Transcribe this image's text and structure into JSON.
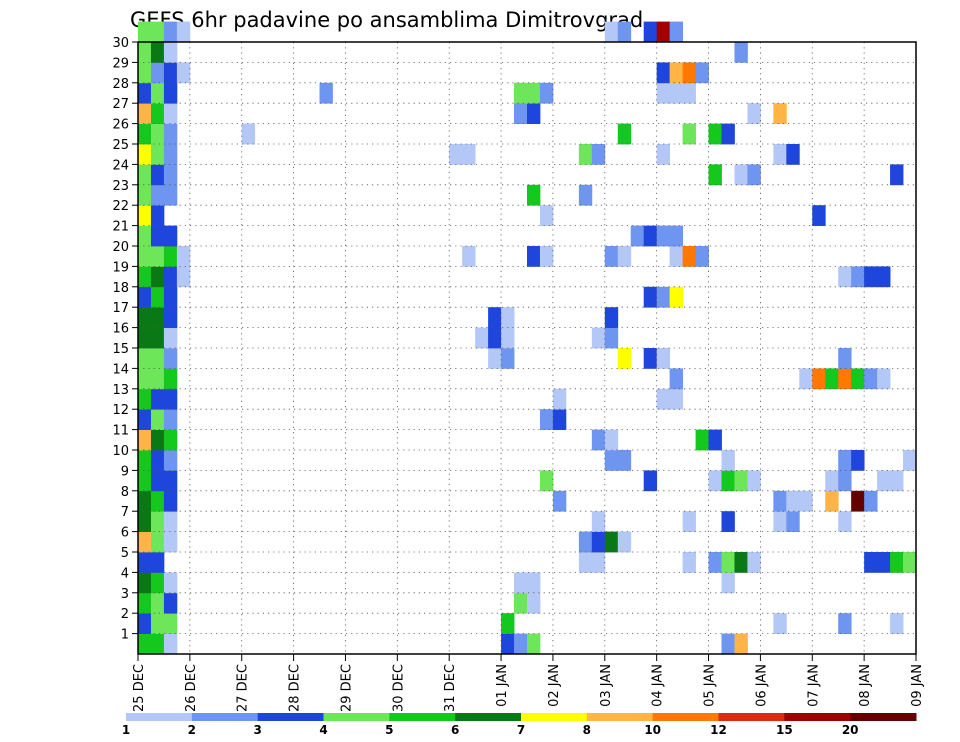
{
  "chart_data": {
    "type": "heatmap",
    "title": "GEFS 6hr padavine po ansamblima Dimitrovgrad",
    "xlabel": "",
    "ylabel": "",
    "x_ticks": [
      "25 DEC",
      "26 DEC",
      "27 DEC",
      "28 DEC",
      "29 DEC",
      "30 DEC",
      "31 DEC",
      "01 JAN",
      "02 JAN",
      "03 JAN",
      "04 JAN",
      "05 JAN",
      "06 JAN",
      "07 JAN",
      "08 JAN",
      "09 JAN"
    ],
    "y_ticks": [
      "1",
      "2",
      "3",
      "4",
      "5",
      "6",
      "7",
      "8",
      "9",
      "10",
      "11",
      "12",
      "13",
      "14",
      "15",
      "16",
      "17",
      "18",
      "19",
      "20",
      "21",
      "22",
      "23",
      "24",
      "25",
      "26",
      "27",
      "28",
      "29",
      "30"
    ],
    "xlim": [
      0,
      60
    ],
    "ylim": [
      0,
      30
    ],
    "x_unit": "6-hour steps from 25 DEC 00Z",
    "grid": true,
    "colorbar": {
      "labels": [
        "1",
        "2",
        "3",
        "4",
        "5",
        "6",
        "7",
        "8",
        "10",
        "12",
        "15",
        "20"
      ],
      "colors": [
        "#b4c8f8",
        "#6e96f0",
        "#1e46dc",
        "#6ee65a",
        "#14c81e",
        "#0a7814",
        "#ffff00",
        "#ffb446",
        "#ff7800",
        "#e12814",
        "#a00000",
        "#640000"
      ]
    },
    "cells": [
      [
        0,
        0,
        "#14c81e"
      ],
      [
        1,
        0,
        "#14c81e"
      ],
      [
        2,
        0,
        "#b4c8f8"
      ],
      [
        28,
        0,
        "#1e46dc"
      ],
      [
        29,
        0,
        "#6e96f0"
      ],
      [
        30,
        0,
        "#6ee65a"
      ],
      [
        45,
        0,
        "#6e96f0"
      ],
      [
        46,
        0,
        "#ffb446"
      ],
      [
        0,
        1,
        "#1e46dc"
      ],
      [
        1,
        1,
        "#6ee65a"
      ],
      [
        2,
        1,
        "#6ee65a"
      ],
      [
        28,
        1,
        "#14c81e"
      ],
      [
        49,
        1,
        "#b4c8f8"
      ],
      [
        54,
        1,
        "#6e96f0"
      ],
      [
        58,
        1,
        "#b4c8f8"
      ],
      [
        0,
        2,
        "#14c81e"
      ],
      [
        1,
        2,
        "#6ee65a"
      ],
      [
        2,
        2,
        "#1e46dc"
      ],
      [
        29,
        2,
        "#6ee65a"
      ],
      [
        30,
        2,
        "#b4c8f8"
      ],
      [
        0,
        3,
        "#0a7814"
      ],
      [
        1,
        3,
        "#14c81e"
      ],
      [
        2,
        3,
        "#b4c8f8"
      ],
      [
        29,
        3,
        "#b4c8f8"
      ],
      [
        30,
        3,
        "#b4c8f8"
      ],
      [
        45,
        3,
        "#b4c8f8"
      ],
      [
        0,
        4,
        "#1e46dc"
      ],
      [
        1,
        4,
        "#1e46dc"
      ],
      [
        34,
        4,
        "#b4c8f8"
      ],
      [
        35,
        4,
        "#b4c8f8"
      ],
      [
        42,
        4,
        "#b4c8f8"
      ],
      [
        44,
        4,
        "#6e96f0"
      ],
      [
        45,
        4,
        "#6ee65a"
      ],
      [
        46,
        4,
        "#0a7814"
      ],
      [
        47,
        4,
        "#b4c8f8"
      ],
      [
        56,
        4,
        "#1e46dc"
      ],
      [
        57,
        4,
        "#1e46dc"
      ],
      [
        58,
        4,
        "#14c81e"
      ],
      [
        59,
        4,
        "#6ee65a"
      ],
      [
        0,
        5,
        "#ffb446"
      ],
      [
        1,
        5,
        "#6ee65a"
      ],
      [
        2,
        5,
        "#b4c8f8"
      ],
      [
        34,
        5,
        "#6e96f0"
      ],
      [
        35,
        5,
        "#1e46dc"
      ],
      [
        36,
        5,
        "#0a7814"
      ],
      [
        37,
        5,
        "#b4c8f8"
      ],
      [
        0,
        6,
        "#0a7814"
      ],
      [
        1,
        6,
        "#6ee65a"
      ],
      [
        2,
        6,
        "#b4c8f8"
      ],
      [
        35,
        6,
        "#b4c8f8"
      ],
      [
        42,
        6,
        "#b4c8f8"
      ],
      [
        45,
        6,
        "#1e46dc"
      ],
      [
        49,
        6,
        "#b4c8f8"
      ],
      [
        50,
        6,
        "#6e96f0"
      ],
      [
        54,
        6,
        "#b4c8f8"
      ],
      [
        0,
        7,
        "#0a7814"
      ],
      [
        1,
        7,
        "#14c81e"
      ],
      [
        2,
        7,
        "#1e46dc"
      ],
      [
        32,
        7,
        "#6e96f0"
      ],
      [
        49,
        7,
        "#6e96f0"
      ],
      [
        50,
        7,
        "#b4c8f8"
      ],
      [
        51,
        7,
        "#b4c8f8"
      ],
      [
        53,
        7,
        "#ffb446"
      ],
      [
        55,
        7,
        "#640000"
      ],
      [
        56,
        7,
        "#6e96f0"
      ],
      [
        0,
        8,
        "#14c81e"
      ],
      [
        1,
        8,
        "#1e46dc"
      ],
      [
        2,
        8,
        "#1e46dc"
      ],
      [
        31,
        8,
        "#6ee65a"
      ],
      [
        39,
        8,
        "#1e46dc"
      ],
      [
        44,
        8,
        "#b4c8f8"
      ],
      [
        45,
        8,
        "#14c81e"
      ],
      [
        46,
        8,
        "#6ee65a"
      ],
      [
        47,
        8,
        "#b4c8f8"
      ],
      [
        53,
        8,
        "#b4c8f8"
      ],
      [
        54,
        8,
        "#6e96f0"
      ],
      [
        57,
        8,
        "#b4c8f8"
      ],
      [
        58,
        8,
        "#b4c8f8"
      ],
      [
        0,
        9,
        "#14c81e"
      ],
      [
        1,
        9,
        "#1e46dc"
      ],
      [
        2,
        9,
        "#6e96f0"
      ],
      [
        36,
        9,
        "#6e96f0"
      ],
      [
        37,
        9,
        "#6e96f0"
      ],
      [
        45,
        9,
        "#b4c8f8"
      ],
      [
        54,
        9,
        "#6e96f0"
      ],
      [
        55,
        9,
        "#1e46dc"
      ],
      [
        59,
        9,
        "#b4c8f8"
      ],
      [
        0,
        10,
        "#ffb446"
      ],
      [
        1,
        10,
        "#0a7814"
      ],
      [
        2,
        10,
        "#14c81e"
      ],
      [
        35,
        10,
        "#6e96f0"
      ],
      [
        36,
        10,
        "#b4c8f8"
      ],
      [
        43,
        10,
        "#14c81e"
      ],
      [
        44,
        10,
        "#1e46dc"
      ],
      [
        0,
        11,
        "#1e46dc"
      ],
      [
        1,
        11,
        "#6ee65a"
      ],
      [
        2,
        11,
        "#6e96f0"
      ],
      [
        31,
        11,
        "#6e96f0"
      ],
      [
        32,
        11,
        "#1e46dc"
      ],
      [
        0,
        12,
        "#14c81e"
      ],
      [
        1,
        12,
        "#1e46dc"
      ],
      [
        2,
        12,
        "#1e46dc"
      ],
      [
        32,
        12,
        "#b4c8f8"
      ],
      [
        40,
        12,
        "#b4c8f8"
      ],
      [
        41,
        12,
        "#b4c8f8"
      ],
      [
        0,
        13,
        "#6ee65a"
      ],
      [
        1,
        13,
        "#6ee65a"
      ],
      [
        2,
        13,
        "#14c81e"
      ],
      [
        41,
        13,
        "#6e96f0"
      ],
      [
        51,
        13,
        "#b4c8f8"
      ],
      [
        52,
        13,
        "#ff7800"
      ],
      [
        53,
        13,
        "#14c81e"
      ],
      [
        54,
        13,
        "#ff7800"
      ],
      [
        55,
        13,
        "#14c81e"
      ],
      [
        56,
        13,
        "#6e96f0"
      ],
      [
        57,
        13,
        "#b4c8f8"
      ],
      [
        0,
        14,
        "#6ee65a"
      ],
      [
        1,
        14,
        "#6ee65a"
      ],
      [
        2,
        14,
        "#6e96f0"
      ],
      [
        27,
        14,
        "#b4c8f8"
      ],
      [
        28,
        14,
        "#6e96f0"
      ],
      [
        37,
        14,
        "#ffff00"
      ],
      [
        39,
        14,
        "#1e46dc"
      ],
      [
        40,
        14,
        "#b4c8f8"
      ],
      [
        54,
        14,
        "#6e96f0"
      ],
      [
        0,
        15,
        "#0a7814"
      ],
      [
        1,
        15,
        "#0a7814"
      ],
      [
        2,
        15,
        "#b4c8f8"
      ],
      [
        26,
        15,
        "#b4c8f8"
      ],
      [
        27,
        15,
        "#1e46dc"
      ],
      [
        28,
        15,
        "#b4c8f8"
      ],
      [
        35,
        15,
        "#b4c8f8"
      ],
      [
        36,
        15,
        "#6e96f0"
      ],
      [
        0,
        16,
        "#0a7814"
      ],
      [
        1,
        16,
        "#0a7814"
      ],
      [
        2,
        16,
        "#1e46dc"
      ],
      [
        27,
        16,
        "#1e46dc"
      ],
      [
        28,
        16,
        "#b4c8f8"
      ],
      [
        36,
        16,
        "#1e46dc"
      ],
      [
        0,
        17,
        "#1e46dc"
      ],
      [
        1,
        17,
        "#14c81e"
      ],
      [
        2,
        17,
        "#1e46dc"
      ],
      [
        39,
        17,
        "#1e46dc"
      ],
      [
        40,
        17,
        "#6e96f0"
      ],
      [
        41,
        17,
        "#ffff00"
      ],
      [
        0,
        18,
        "#14c81e"
      ],
      [
        1,
        18,
        "#0a7814"
      ],
      [
        2,
        18,
        "#1e46dc"
      ],
      [
        3,
        18,
        "#b4c8f8"
      ],
      [
        54,
        18,
        "#b4c8f8"
      ],
      [
        55,
        18,
        "#6e96f0"
      ],
      [
        56,
        18,
        "#1e46dc"
      ],
      [
        57,
        18,
        "#1e46dc"
      ],
      [
        0,
        19,
        "#6ee65a"
      ],
      [
        1,
        19,
        "#6ee65a"
      ],
      [
        2,
        19,
        "#14c81e"
      ],
      [
        3,
        19,
        "#b4c8f8"
      ],
      [
        25,
        19,
        "#b4c8f8"
      ],
      [
        30,
        19,
        "#1e46dc"
      ],
      [
        31,
        19,
        "#b4c8f8"
      ],
      [
        36,
        19,
        "#6e96f0"
      ],
      [
        37,
        19,
        "#b4c8f8"
      ],
      [
        41,
        19,
        "#b4c8f8"
      ],
      [
        42,
        19,
        "#ff7800"
      ],
      [
        43,
        19,
        "#6e96f0"
      ],
      [
        0,
        20,
        "#6ee65a"
      ],
      [
        1,
        20,
        "#1e46dc"
      ],
      [
        2,
        20,
        "#1e46dc"
      ],
      [
        38,
        20,
        "#6e96f0"
      ],
      [
        39,
        20,
        "#1e46dc"
      ],
      [
        40,
        20,
        "#6e96f0"
      ],
      [
        41,
        20,
        "#6e96f0"
      ],
      [
        0,
        21,
        "#ffff00"
      ],
      [
        1,
        21,
        "#1e46dc"
      ],
      [
        31,
        21,
        "#b4c8f8"
      ],
      [
        52,
        21,
        "#1e46dc"
      ],
      [
        0,
        22,
        "#6ee65a"
      ],
      [
        1,
        22,
        "#6e96f0"
      ],
      [
        2,
        22,
        "#6e96f0"
      ],
      [
        30,
        22,
        "#14c81e"
      ],
      [
        34,
        22,
        "#6e96f0"
      ],
      [
        0,
        23,
        "#6ee65a"
      ],
      [
        1,
        23,
        "#1e46dc"
      ],
      [
        2,
        23,
        "#6e96f0"
      ],
      [
        44,
        23,
        "#14c81e"
      ],
      [
        46,
        23,
        "#b4c8f8"
      ],
      [
        47,
        23,
        "#6e96f0"
      ],
      [
        58,
        23,
        "#1e46dc"
      ],
      [
        0,
        24,
        "#ffff00"
      ],
      [
        1,
        24,
        "#6ee65a"
      ],
      [
        2,
        24,
        "#6e96f0"
      ],
      [
        24,
        24,
        "#b4c8f8"
      ],
      [
        25,
        24,
        "#b4c8f8"
      ],
      [
        34,
        24,
        "#6ee65a"
      ],
      [
        35,
        24,
        "#6e96f0"
      ],
      [
        40,
        24,
        "#b4c8f8"
      ],
      [
        49,
        24,
        "#b4c8f8"
      ],
      [
        50,
        24,
        "#1e46dc"
      ],
      [
        0,
        25,
        "#14c81e"
      ],
      [
        1,
        25,
        "#6ee65a"
      ],
      [
        2,
        25,
        "#6e96f0"
      ],
      [
        8,
        25,
        "#b4c8f8"
      ],
      [
        37,
        25,
        "#14c81e"
      ],
      [
        42,
        25,
        "#6ee65a"
      ],
      [
        44,
        25,
        "#14c81e"
      ],
      [
        45,
        25,
        "#1e46dc"
      ],
      [
        0,
        26,
        "#ffb446"
      ],
      [
        1,
        26,
        "#14c81e"
      ],
      [
        2,
        26,
        "#b4c8f8"
      ],
      [
        29,
        26,
        "#6e96f0"
      ],
      [
        30,
        26,
        "#1e46dc"
      ],
      [
        47,
        26,
        "#b4c8f8"
      ],
      [
        49,
        26,
        "#ffb446"
      ],
      [
        0,
        27,
        "#1e46dc"
      ],
      [
        1,
        27,
        "#6ee65a"
      ],
      [
        2,
        27,
        "#1e46dc"
      ],
      [
        14,
        27,
        "#6e96f0"
      ],
      [
        29,
        27,
        "#6ee65a"
      ],
      [
        30,
        27,
        "#6ee65a"
      ],
      [
        31,
        27,
        "#6e96f0"
      ],
      [
        40,
        27,
        "#b4c8f8"
      ],
      [
        41,
        27,
        "#b4c8f8"
      ],
      [
        42,
        27,
        "#b4c8f8"
      ],
      [
        0,
        28,
        "#6ee65a"
      ],
      [
        1,
        28,
        "#6e96f0"
      ],
      [
        2,
        28,
        "#1e46dc"
      ],
      [
        3,
        28,
        "#b4c8f8"
      ],
      [
        40,
        28,
        "#1e46dc"
      ],
      [
        41,
        28,
        "#ffb446"
      ],
      [
        42,
        28,
        "#ff7800"
      ],
      [
        43,
        28,
        "#6e96f0"
      ],
      [
        0,
        29,
        "#6ee65a"
      ],
      [
        1,
        29,
        "#0a7814"
      ],
      [
        2,
        29,
        "#b4c8f8"
      ],
      [
        46,
        29,
        "#6e96f0"
      ],
      [
        0,
        30,
        "#6ee65a"
      ],
      [
        1,
        30,
        "#6ee65a"
      ],
      [
        2,
        30,
        "#6e96f0"
      ],
      [
        3,
        30,
        "#b4c8f8"
      ],
      [
        36,
        30,
        "#b4c8f8"
      ],
      [
        37,
        30,
        "#6e96f0"
      ],
      [
        39,
        30,
        "#1e46dc"
      ],
      [
        40,
        30,
        "#a00000"
      ],
      [
        41,
        30,
        "#6e96f0"
      ]
    ]
  }
}
